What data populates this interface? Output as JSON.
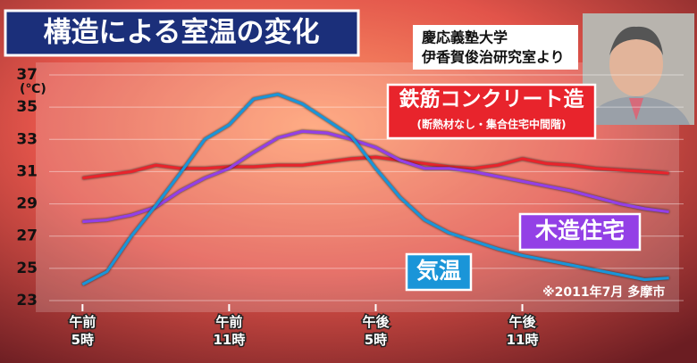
{
  "chart_data": {
    "type": "line",
    "title": "構造による室温の変化",
    "source_lines": [
      "慶応義塾大学",
      "伊香賀俊治研究室より"
    ],
    "y_unit": "(℃)",
    "annotation": "(断熱材なし・集合住宅中間階)",
    "note": "※2011年7月 多摩市",
    "x": [
      5,
      6,
      7,
      8,
      9,
      10,
      11,
      12,
      13,
      14,
      15,
      16,
      17,
      18,
      19,
      20,
      21,
      22,
      23,
      24,
      25,
      26,
      27,
      28,
      29
    ],
    "xlim": [
      4,
      29.6
    ],
    "xticks": [
      {
        "value": 5,
        "label": "午前\n5時"
      },
      {
        "value": 11,
        "label": "午前\n11時"
      },
      {
        "value": 17,
        "label": "午後\n5時"
      },
      {
        "value": 23,
        "label": "午後\n11時"
      }
    ],
    "ylim": [
      23,
      37
    ],
    "yticks": [
      23,
      25,
      27,
      29,
      31,
      33,
      35,
      37
    ],
    "grid": true,
    "series": [
      {
        "name": "鉄筋コンクリート造",
        "color": "#e8242c",
        "values": [
          30.6,
          30.8,
          31.0,
          31.4,
          31.2,
          31.2,
          31.3,
          31.3,
          31.4,
          31.4,
          31.6,
          31.8,
          31.9,
          31.7,
          31.5,
          31.3,
          31.2,
          31.4,
          31.8,
          31.5,
          31.4,
          31.2,
          31.1,
          31.0,
          30.9
        ]
      },
      {
        "name": "木造住宅",
        "color": "#9340e6",
        "values": [
          27.9,
          28.0,
          28.3,
          28.8,
          29.8,
          30.6,
          31.2,
          32.2,
          33.1,
          33.5,
          33.4,
          33.0,
          32.5,
          31.7,
          31.2,
          31.2,
          31.0,
          30.7,
          30.4,
          30.1,
          29.8,
          29.4,
          29.0,
          28.7,
          28.5
        ]
      },
      {
        "name": "気温",
        "color": "#1a95d8",
        "values": [
          24.0,
          24.8,
          27.0,
          28.9,
          30.9,
          33.0,
          33.9,
          35.5,
          35.8,
          35.2,
          34.2,
          33.2,
          31.2,
          29.4,
          28.0,
          27.2,
          26.7,
          26.2,
          25.8,
          25.5,
          25.2,
          24.9,
          24.6,
          24.3,
          24.4
        ]
      }
    ]
  }
}
